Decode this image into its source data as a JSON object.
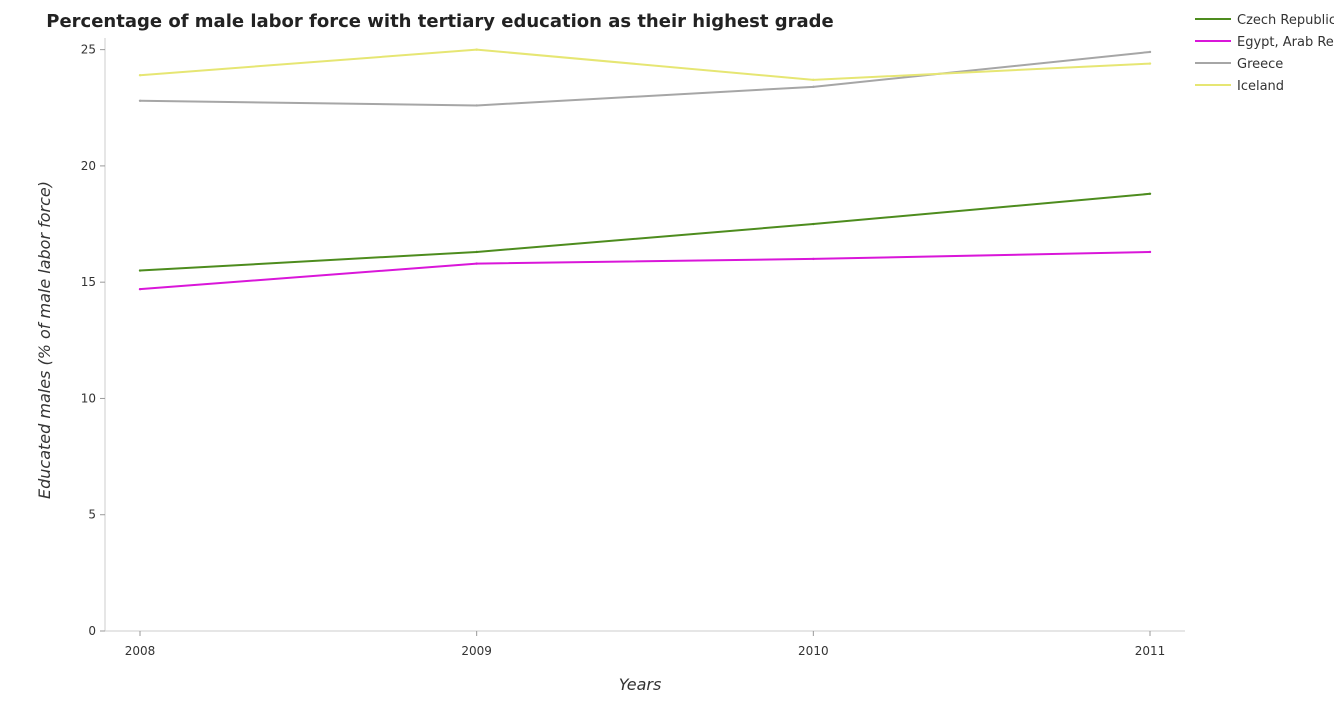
{
  "chart_data": {
    "type": "line",
    "title": "Percentage of male labor force with tertiary education as their highest grade",
    "xlabel": "Years",
    "ylabel": "Educated males (% of male labor force)",
    "categories": [
      "2008",
      "2009",
      "2010",
      "2011"
    ],
    "ylim": [
      0,
      25.5
    ],
    "yticks": [
      0,
      5,
      10,
      15,
      20,
      25
    ],
    "grid": false,
    "legend_position": "top-right",
    "series": [
      {
        "name": "Czech Republic",
        "color": "#4d8c1e",
        "values": [
          15.5,
          16.3,
          17.5,
          18.8
        ]
      },
      {
        "name": "Egypt, Arab Rep.",
        "color": "#d916d9",
        "values": [
          14.7,
          15.8,
          16.0,
          16.3
        ]
      },
      {
        "name": "Greece",
        "color": "#a6a6a6",
        "values": [
          22.8,
          22.6,
          23.4,
          24.9
        ]
      },
      {
        "name": "Iceland",
        "color": "#e6e673",
        "values": [
          23.9,
          25.0,
          23.7,
          24.4
        ]
      }
    ]
  }
}
